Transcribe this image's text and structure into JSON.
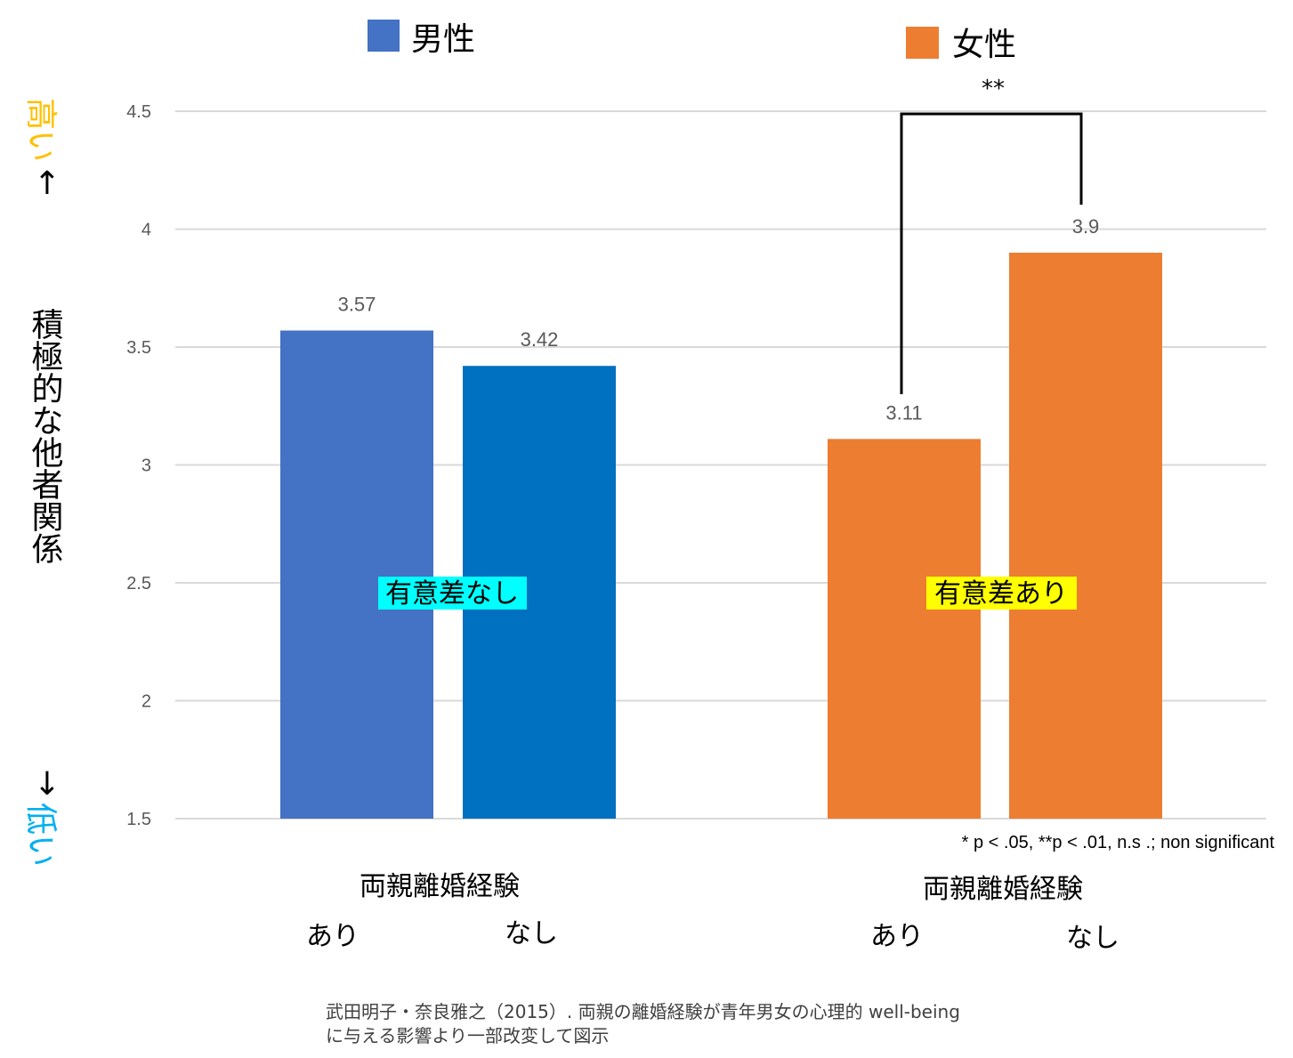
{
  "chart_data": {
    "type": "bar",
    "series": [
      {
        "name": "男性",
        "values": [
          3.57,
          3.42
        ],
        "colors": [
          "#4472C4",
          "#0070C0"
        ]
      },
      {
        "name": "女性",
        "values": [
          3.11,
          3.9
        ],
        "colors": [
          "#ED7D31",
          "#ED7D31"
        ]
      }
    ],
    "categories": [
      "あり",
      "なし"
    ],
    "group_label": "両親離婚経験",
    "ylim": [
      1.5,
      4.5
    ],
    "yticks": [
      "1.5",
      "2",
      "2.5",
      "3",
      "3.5",
      "4",
      "4.5"
    ],
    "data_labels": [
      "3.57",
      "3.42",
      "3.11",
      "3.9"
    ],
    "grid": true,
    "ylabel": "積極的な他者関係",
    "y_high": "高い",
    "y_low": "低い",
    "arrow_up": "↑",
    "arrow_down": "↓",
    "significance": [
      {
        "text": "有意差なし",
        "highlight": "#00FFFF"
      },
      {
        "text": "有意差あり",
        "highlight": "#FFFF00"
      }
    ],
    "stars": "**",
    "note": "* p < .05, **p < .01, n.s .; non significant",
    "caption_lines": [
      "武田明子・奈良雅之（2015）. 両親の離婚経験が青年男女の心理的 well-being",
      "に与える影響より一部改変して図示"
    ]
  },
  "colors": {
    "male_ari": "#4472C4",
    "male_nashi": "#0070C0",
    "female": "#ED7D31",
    "high": "#FFC000",
    "low": "#00B0F0",
    "grid": "#D9D9D9"
  }
}
